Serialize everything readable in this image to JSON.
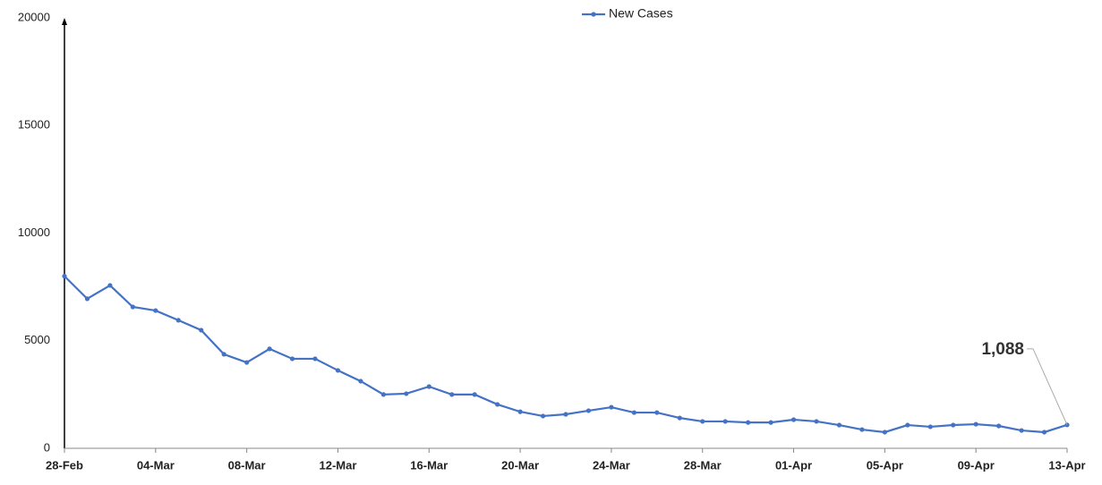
{
  "chart_data": {
    "type": "line",
    "categories": [
      "28-Feb",
      null,
      null,
      null,
      "04-Mar",
      null,
      null,
      null,
      "08-Mar",
      null,
      null,
      null,
      "12-Mar",
      null,
      null,
      null,
      "16-Mar",
      null,
      null,
      null,
      "20-Mar",
      null,
      null,
      null,
      "24-Mar",
      null,
      null,
      null,
      "28-Mar",
      null,
      null,
      null,
      "01-Apr",
      null,
      null,
      null,
      "05-Apr",
      null,
      null,
      null,
      "09-Apr",
      null,
      null,
      null,
      "13-Apr"
    ],
    "series": [
      {
        "name": "New Cases",
        "color": "#4472c4",
        "values": [
          8000,
          6950,
          7570,
          6570,
          6400,
          5950,
          5490,
          4370,
          3990,
          4620,
          4160,
          4160,
          3620,
          3120,
          2500,
          2540,
          2870,
          2500,
          2500,
          2040,
          1700,
          1500,
          1580,
          1750,
          1910,
          1660,
          1660,
          1410,
          1250,
          1250,
          1200,
          1200,
          1330,
          1250,
          1080,
          870,
          750,
          1080,
          1000,
          1080,
          1120,
          1040,
          830,
          750,
          1088
        ],
        "value_labels": [
          null,
          null,
          null,
          null,
          null,
          null,
          null,
          null,
          null,
          null,
          null,
          null,
          null,
          null,
          null,
          null,
          null,
          null,
          null,
          null,
          null,
          null,
          null,
          null,
          null,
          null,
          null,
          null,
          null,
          null,
          null,
          null,
          null,
          null,
          null,
          null,
          null,
          null,
          null,
          null,
          null,
          null,
          null,
          null,
          "1,088"
        ]
      }
    ],
    "ylim": [
      0,
      20000
    ],
    "yticks": [
      0,
      5000,
      10000,
      15000,
      20000
    ],
    "grid": false,
    "legend": "top"
  }
}
